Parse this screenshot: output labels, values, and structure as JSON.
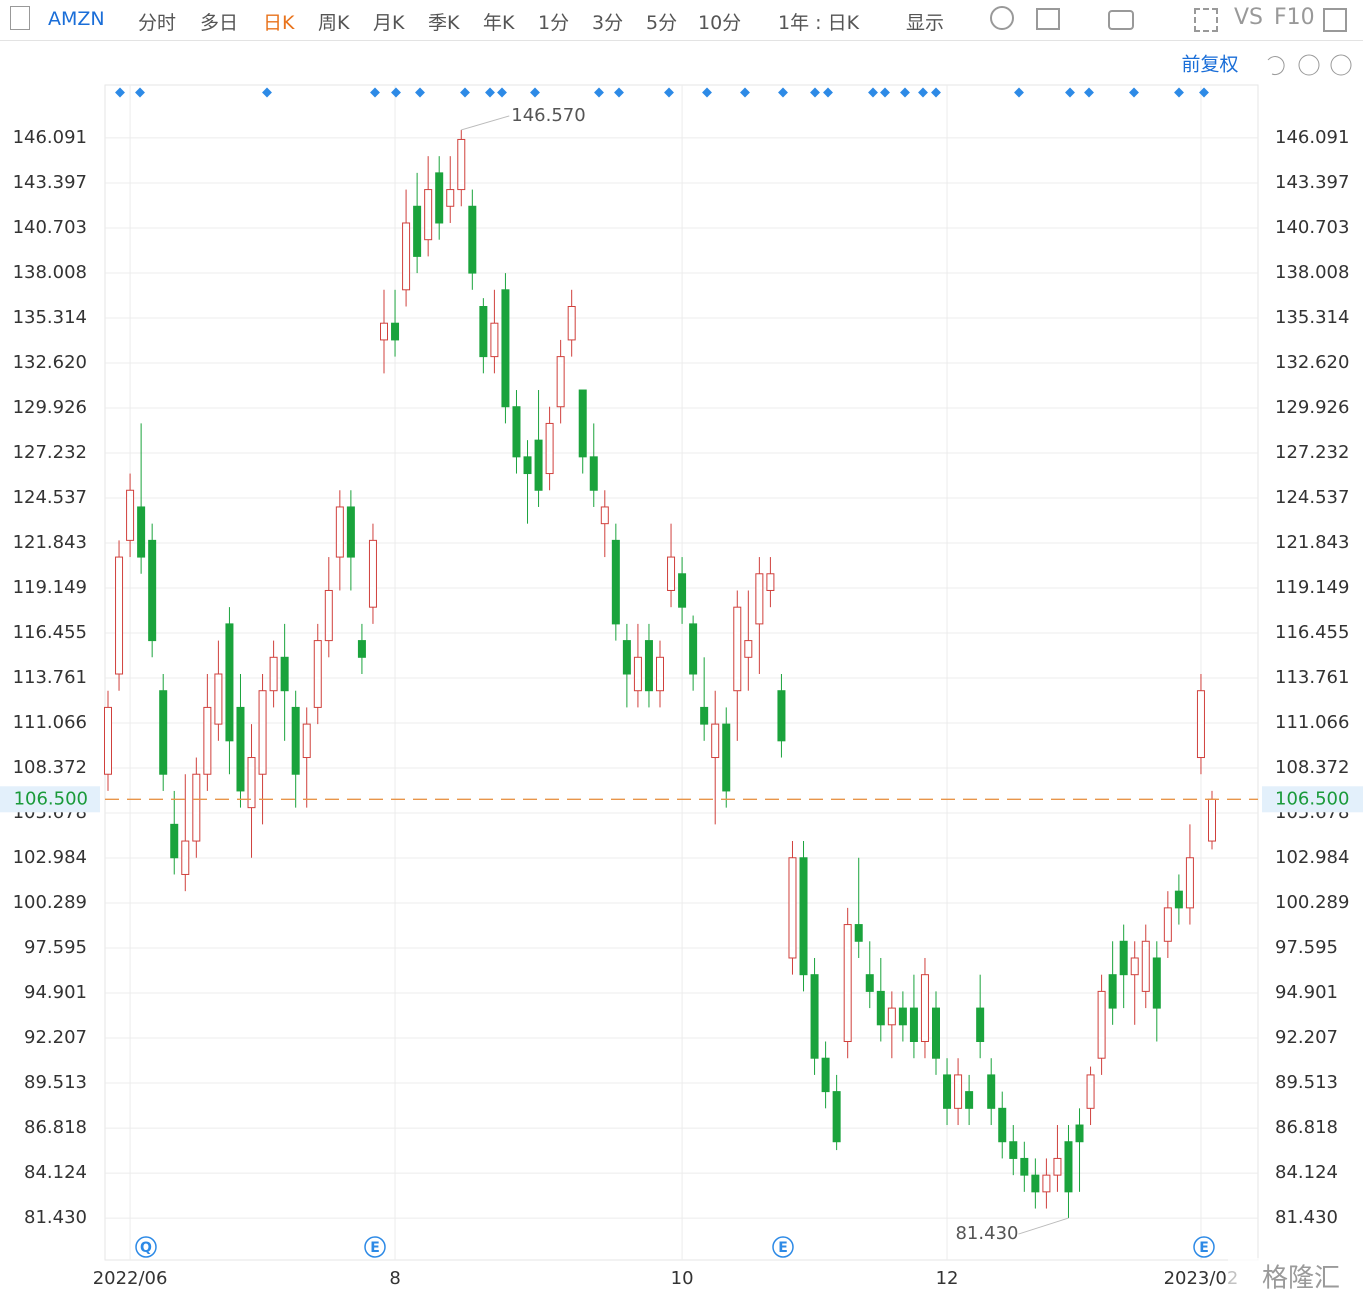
{
  "toolbar": {
    "symbol": "AMZN",
    "periods": [
      "分时",
      "多日",
      "日K",
      "周K",
      "月K",
      "季K",
      "年K",
      "1分",
      "3分",
      "5分",
      "10分"
    ],
    "active": "日K",
    "range": "1年 : 日K",
    "display": "显示",
    "vs": "VS",
    "f10": "F10",
    "adjust": "前复权"
  },
  "chart_data": {
    "type": "candlestick",
    "up_color": "#d0403c",
    "down_color": "#1aa33c",
    "grid": true,
    "categories": [
      null,
      null,
      "2022/06",
      null,
      null,
      null,
      null,
      null,
      null,
      null,
      null,
      null,
      null,
      null,
      null,
      null,
      null,
      null,
      null,
      null,
      null,
      null,
      null,
      null,
      null,
      null,
      "8",
      null,
      null,
      null,
      null,
      null,
      null,
      null,
      null,
      null,
      null,
      null,
      null,
      null,
      null,
      null,
      null,
      null,
      null,
      null,
      null,
      null,
      null,
      null,
      null,
      null,
      "10",
      null,
      null,
      null,
      null,
      null,
      null,
      null,
      null,
      null,
      null,
      null,
      null,
      null,
      null,
      null,
      null,
      null,
      null,
      null,
      null,
      null,
      null,
      null,
      "12",
      null,
      null,
      null,
      null,
      null,
      null,
      null,
      null,
      null,
      null,
      null,
      null,
      null,
      null,
      null,
      null,
      null,
      null,
      null,
      null,
      null,
      null,
      "2023/02",
      null
    ],
    "open": [
      108,
      114,
      122,
      124,
      122,
      113,
      105,
      102,
      104,
      108,
      111,
      117,
      112,
      106,
      108,
      113,
      115,
      112,
      109,
      112,
      116,
      121,
      124,
      116,
      118,
      134,
      135,
      137,
      142,
      140,
      144,
      142,
      143,
      142,
      136,
      133,
      137,
      130,
      127,
      128,
      126,
      130,
      134,
      131,
      127,
      123,
      122,
      116,
      113,
      116,
      113,
      119,
      120,
      117,
      112,
      109,
      111,
      113,
      115,
      117,
      119,
      113,
      97,
      103,
      96,
      91,
      89,
      92,
      99,
      96,
      95,
      93,
      94,
      94,
      92,
      94,
      90,
      88,
      89,
      94,
      90,
      88,
      86,
      85,
      84,
      83,
      84,
      86,
      87,
      88,
      91,
      96,
      98,
      96,
      95,
      97,
      98,
      101,
      100,
      109,
      104
    ],
    "close": [
      112,
      121,
      125,
      121,
      116,
      108,
      103,
      104,
      108,
      112,
      114,
      110,
      107,
      109,
      113,
      115,
      113,
      108,
      111,
      116,
      119,
      124,
      121,
      115,
      122,
      135,
      134,
      141,
      139,
      143,
      141,
      143,
      146,
      138,
      133,
      135,
      130,
      127,
      126,
      125,
      129,
      133,
      136,
      127,
      125,
      124,
      117,
      114,
      115,
      113,
      115,
      121,
      118,
      114,
      111,
      111,
      107,
      118,
      116,
      120,
      120,
      110,
      103,
      96,
      91,
      89,
      86,
      99,
      98,
      95,
      93,
      94,
      93,
      92,
      96,
      91,
      88,
      90,
      88,
      92,
      88,
      86,
      85,
      84,
      83,
      84,
      85,
      83,
      86,
      90,
      95,
      94,
      96,
      97,
      98,
      94,
      100,
      100,
      103,
      113,
      106.5
    ],
    "high": [
      113,
      122,
      126,
      129,
      123,
      114,
      107,
      108,
      109,
      114,
      116,
      118,
      114,
      111,
      114,
      116,
      117,
      113,
      112,
      117,
      121,
      125,
      125,
      117,
      123,
      137,
      137,
      143,
      144,
      145,
      145,
      145,
      146.57,
      143,
      136.5,
      137,
      138,
      131,
      128,
      131,
      130,
      134,
      137,
      131,
      129,
      125,
      123,
      117,
      117,
      117,
      116,
      123,
      121,
      117.5,
      115,
      113,
      112,
      119,
      119,
      121,
      121,
      114,
      104,
      104,
      97,
      92,
      90,
      100,
      103,
      98,
      97,
      95,
      95,
      96,
      97,
      95,
      91,
      91,
      90,
      96,
      91,
      89,
      87,
      86,
      85,
      85,
      87,
      87,
      88,
      90.5,
      96,
      98,
      99,
      98,
      99,
      98,
      101,
      102,
      105,
      114,
      107
    ],
    "low": [
      107,
      113,
      121,
      120,
      115,
      107,
      102,
      101,
      103,
      107,
      110,
      108,
      106,
      103,
      105,
      112,
      110,
      106,
      106,
      111,
      115,
      119,
      119,
      114,
      117,
      132,
      133,
      136,
      138,
      139,
      140,
      141,
      142,
      137,
      132,
      132,
      129,
      126,
      123,
      124,
      125,
      129,
      133,
      126,
      124,
      121,
      116,
      112,
      112,
      112,
      112,
      118,
      117,
      113,
      110,
      105,
      106,
      110,
      113,
      114,
      118,
      109,
      96,
      95,
      90,
      88,
      85.5,
      91,
      97,
      94,
      92,
      91,
      92,
      91,
      91,
      90,
      87,
      87,
      87,
      91,
      87,
      85,
      84,
      83,
      82,
      82,
      83,
      81.43,
      83,
      87,
      90,
      93,
      94,
      93,
      94,
      92,
      97,
      99,
      99,
      108,
      103.5
    ],
    "ylim": [
      78.92,
      149.26
    ],
    "yticks": [
      {
        "value": 146.091,
        "label": "146.091"
      },
      {
        "value": 143.397,
        "label": "143.397"
      },
      {
        "value": 140.703,
        "label": "140.703"
      },
      {
        "value": 138.008,
        "label": "138.008"
      },
      {
        "value": 135.314,
        "label": "135.314"
      },
      {
        "value": 132.62,
        "label": "132.620"
      },
      {
        "value": 129.926,
        "label": "129.926"
      },
      {
        "value": 127.232,
        "label": "127.232"
      },
      {
        "value": 124.537,
        "label": "124.537"
      },
      {
        "value": 121.843,
        "label": "121.843"
      },
      {
        "value": 119.149,
        "label": "119.149"
      },
      {
        "value": 116.455,
        "label": "116.455"
      },
      {
        "value": 113.761,
        "label": "113.761"
      },
      {
        "value": 111.066,
        "label": "111.066"
      },
      {
        "value": 108.372,
        "label": "108.372"
      },
      {
        "value": 105.678,
        "label": "105.678"
      },
      {
        "value": 102.984,
        "label": "102.984"
      },
      {
        "value": 100.289,
        "label": "100.289"
      },
      {
        "value": 97.595,
        "label": "97.595"
      },
      {
        "value": 94.901,
        "label": "94.901"
      },
      {
        "value": 92.207,
        "label": "92.207"
      },
      {
        "value": 89.513,
        "label": "89.513"
      },
      {
        "value": 86.818,
        "label": "86.818"
      },
      {
        "value": 84.124,
        "label": "84.124"
      },
      {
        "value": 81.43,
        "label": "81.430"
      }
    ],
    "last_price": {
      "value": 106.5,
      "label": "106.500",
      "color": "#e8954a"
    },
    "annotations": [
      {
        "value": 146.57,
        "label": "146.570"
      },
      {
        "value": 81.43,
        "label": "81.430"
      }
    ],
    "events": [
      "Q",
      "E",
      "E",
      "E"
    ],
    "watermark": "格隆汇"
  }
}
